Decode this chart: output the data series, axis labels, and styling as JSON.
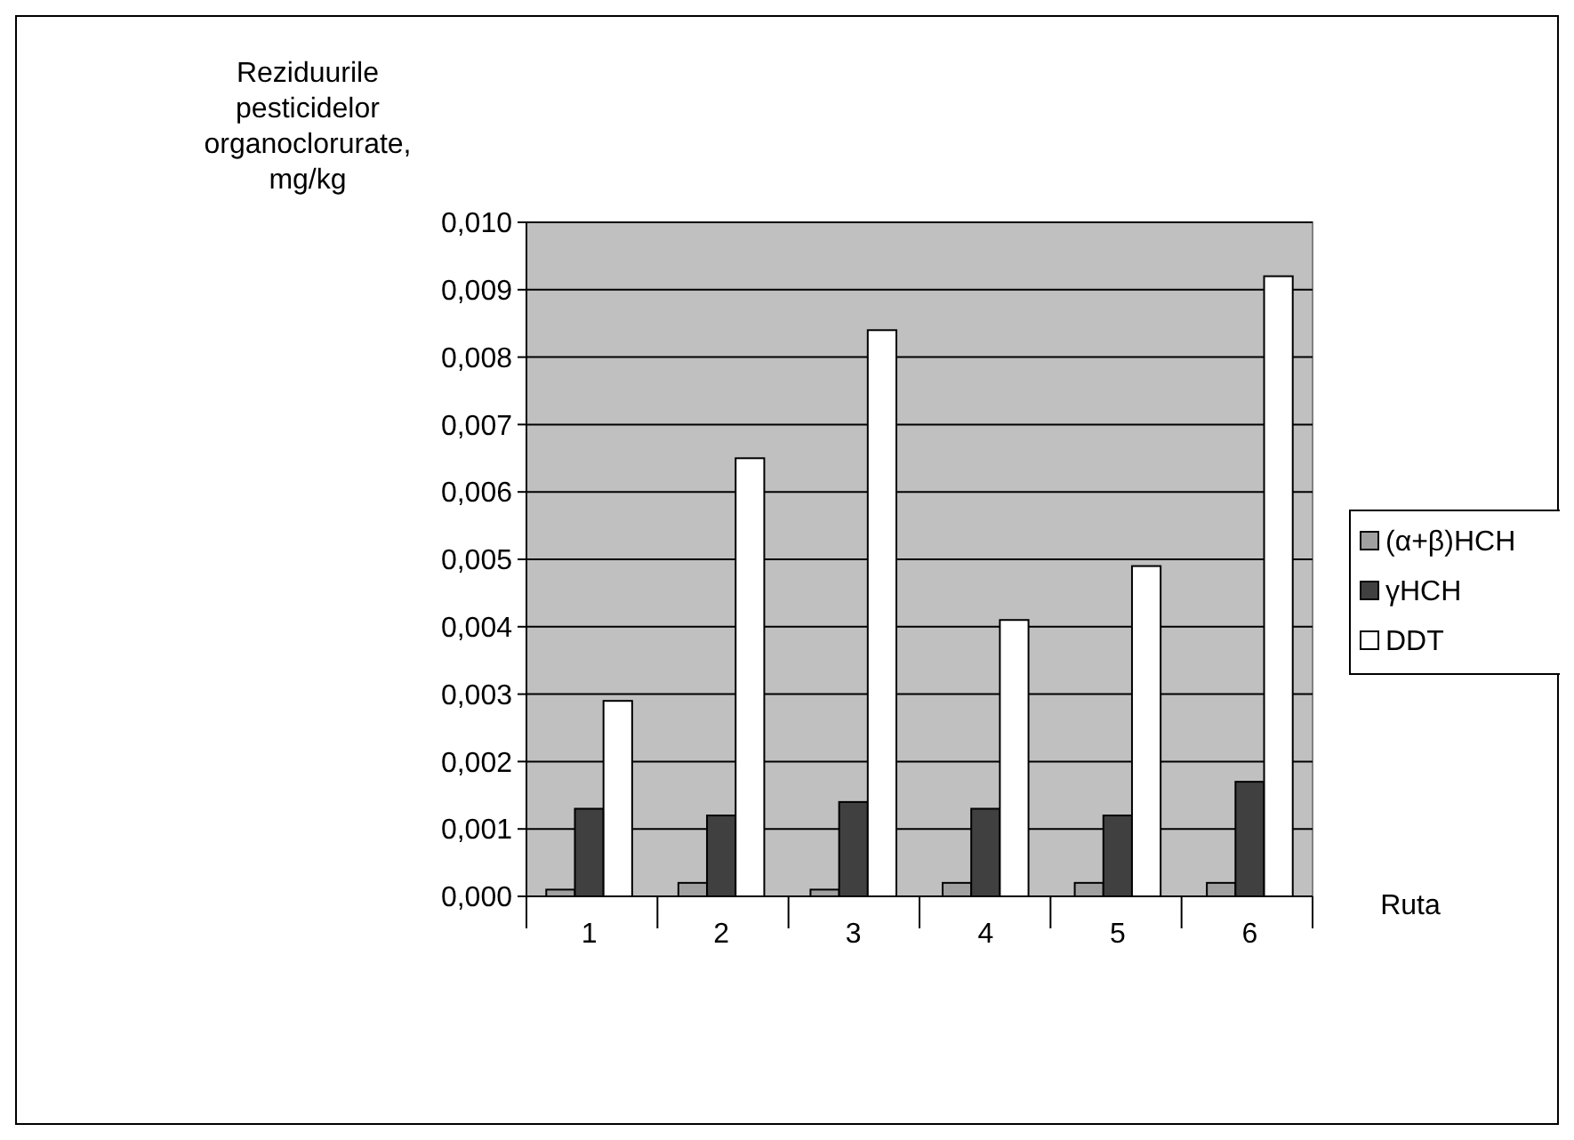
{
  "chart_data": {
    "type": "bar",
    "ylabel": "Reziduurile pesticidelor organoclorurate, mg/kg",
    "xlabel": "Ruta",
    "categories": [
      "1",
      "2",
      "3",
      "4",
      "5",
      "6"
    ],
    "series": [
      {
        "name": "(α+β)HCH",
        "color": "#a0a0a0",
        "values": [
          0.0001,
          0.0002,
          0.0001,
          0.0002,
          0.0002,
          0.0002
        ]
      },
      {
        "name": "γHCH",
        "color": "#404040",
        "values": [
          0.0013,
          0.0012,
          0.0014,
          0.0013,
          0.0012,
          0.0017
        ]
      },
      {
        "name": "DDT",
        "color": "#ffffff",
        "values": [
          0.0029,
          0.0065,
          0.0084,
          0.0041,
          0.0049,
          0.0092
        ]
      }
    ],
    "ylim": [
      0,
      0.01
    ],
    "yticks": [
      {
        "value": 0,
        "label": "0,000"
      },
      {
        "value": 0.001,
        "label": "0,001"
      },
      {
        "value": 0.002,
        "label": "0,002"
      },
      {
        "value": 0.003,
        "label": "0,003"
      },
      {
        "value": 0.004,
        "label": "0,004"
      },
      {
        "value": 0.005,
        "label": "0,005"
      },
      {
        "value": 0.006,
        "label": "0,006"
      },
      {
        "value": 0.007,
        "label": "0,007"
      },
      {
        "value": 0.008,
        "label": "0,008"
      },
      {
        "value": 0.009,
        "label": "0,009"
      },
      {
        "value": 0.01,
        "label": "0,010"
      }
    ],
    "grid": "y",
    "legend": "right"
  }
}
